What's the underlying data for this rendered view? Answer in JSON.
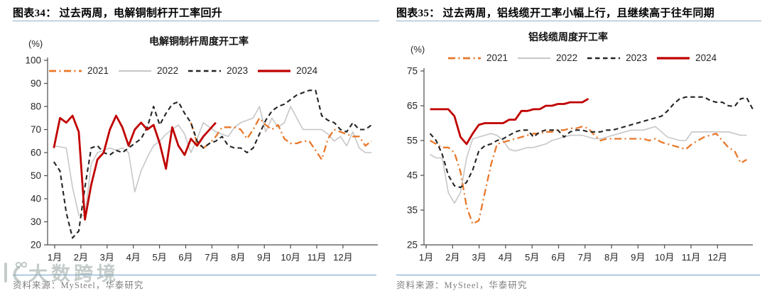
{
  "panels": [
    {
      "header": "图表34：  过去两周，电解铜制杆开工率回升",
      "chart_title": "电解铜制杆周度开工率",
      "unit_label": "(%)",
      "source": "资料来源：MySteel，华泰研究",
      "chart_data": {
        "type": "line",
        "ylim": [
          20,
          100
        ],
        "yticks": [
          20,
          30,
          40,
          50,
          60,
          70,
          80,
          90,
          100
        ],
        "x_labels": [
          "1月",
          "2月",
          "3月",
          "4月",
          "5月",
          "6月",
          "7月",
          "8月",
          "9月",
          "10月",
          "11月",
          "12月"
        ],
        "x_unit": "week",
        "weeks_total": 53,
        "grid": false,
        "legend_position": "top",
        "series": [
          {
            "name": "2021",
            "style": "dashdot",
            "color": "#E8782B",
            "start_week": 23,
            "values": [
              73,
              64,
              62,
              64,
              67,
              71,
              71,
              71,
              70,
              66,
              70,
              75,
              72,
              70,
              72,
              66,
              64,
              64,
              65,
              65,
              61,
              57,
              66,
              70,
              69,
              68,
              67,
              67,
              63,
              65
            ]
          },
          {
            "name": "2022",
            "style": "solid",
            "color": "#C7C7C7",
            "start_week": 1,
            "values": [
              63,
              62.5,
              62,
              45,
              33,
              32.5,
              55,
              60,
              61,
              62,
              61,
              62,
              60,
              43,
              52,
              58,
              63,
              65,
              68,
              70,
              72,
              68,
              60,
              66,
              73,
              71,
              69,
              68,
              67,
              71,
              73,
              74,
              75,
              80,
              69,
              75,
              71,
              73,
              80,
              75,
              70,
              70,
              70,
              70,
              68,
              65,
              67,
              63,
              69,
              62,
              60,
              60
            ]
          },
          {
            "name": "2023",
            "style": "dashed",
            "color": "#242424",
            "start_week": 1,
            "values": [
              56,
              52,
              34,
              23,
              26,
              45,
              62,
              63,
              60,
              59,
              61,
              60,
              62,
              64,
              66,
              71,
              80,
              72,
              77,
              81,
              82,
              77,
              73,
              65,
              62,
              64,
              65,
              67,
              63,
              62,
              62,
              60,
              62,
              68,
              74,
              78,
              80,
              81,
              83,
              85,
              86,
              87,
              87,
              76,
              74,
              73,
              70,
              69,
              73,
              70,
              70,
              72
            ]
          },
          {
            "name": "2024",
            "style": "solid",
            "color": "#C00000",
            "start_week": 1,
            "values": [
              62,
              75,
              73,
              76,
              69,
              31,
              46,
              57,
              60,
              70,
              76,
              71,
              63,
              70,
              73,
              70,
              72,
              64,
              53,
              71,
              63,
              59,
              66,
              63,
              67,
              70,
              73
            ]
          }
        ]
      }
    },
    {
      "header": "图表35：  过去两周，铝线缆开工率小幅上行，且继续高于往年同期",
      "chart_title": "铝线缆周度开工率",
      "unit_label": "(%)",
      "source": "资料来源：MySteel，华泰研究",
      "chart_data": {
        "type": "line",
        "ylim": [
          25,
          75
        ],
        "yticks": [
          25,
          35,
          45,
          55,
          65,
          75
        ],
        "x_labels": [
          "1月",
          "2月",
          "3月",
          "4月",
          "5月",
          "6月",
          "7月",
          "8月",
          "9月",
          "10月",
          "11月",
          "12月"
        ],
        "x_unit": "week",
        "weeks_total": 54,
        "grid": false,
        "legend_position": "top",
        "series": [
          {
            "name": "2021",
            "style": "dashdot",
            "color": "#E8782B",
            "start_week": 1,
            "values": [
              55,
              54,
              53,
              53,
              51.5,
              46,
              36,
              31,
              32,
              40,
              48,
              54,
              54.5,
              55,
              55.5,
              56,
              56.5,
              57,
              57,
              57.5,
              57.5,
              58,
              58,
              58.5,
              58.5,
              59,
              58.5,
              56.5,
              55,
              55.5,
              55.5,
              55.5,
              55.5,
              55.5,
              55.5,
              55.5,
              55,
              55.5,
              54.5,
              54,
              53.5,
              53,
              52.5,
              54,
              55,
              56,
              56.5,
              57,
              55,
              53,
              52,
              48.5,
              49.5
            ]
          },
          {
            "name": "2022",
            "style": "solid",
            "color": "#C7C7C7",
            "start_week": 1,
            "values": [
              51,
              50,
              50,
              40,
              37,
              40,
              50,
              55.5,
              56,
              56.5,
              57,
              56.5,
              55,
              52.5,
              52,
              52.5,
              53,
              53,
              53.5,
              54,
              55,
              55.5,
              56,
              56.5,
              56.5,
              56.5,
              56,
              55.5,
              55.5,
              56,
              56.5,
              57,
              57.5,
              58,
              58,
              58,
              58.5,
              59,
              57.5,
              56,
              55.5,
              55,
              55,
              57.5,
              57.5,
              57.5,
              57.5,
              57.5,
              57.5,
              57.5,
              57,
              56.5,
              56.5
            ]
          },
          {
            "name": "2023",
            "style": "dashed",
            "color": "#242424",
            "start_week": 1,
            "values": [
              57,
              55,
              51,
              45,
              42,
              41.5,
              43,
              46.5,
              52,
              53.5,
              54,
              55,
              55.5,
              56.5,
              57.5,
              58,
              58,
              56,
              57.5,
              58,
              58,
              58,
              56,
              57.5,
              58,
              58,
              57.5,
              57.5,
              57.5,
              58,
              58,
              58.5,
              59,
              59.5,
              60,
              60.5,
              61,
              61.5,
              62,
              63.5,
              65.5,
              67,
              67.5,
              67.5,
              67.5,
              67.5,
              66.5,
              66,
              66,
              65,
              64.8,
              67,
              67.3,
              64
            ]
          },
          {
            "name": "2024",
            "style": "solid",
            "color": "#C00000",
            "start_week": 1,
            "values": [
              64,
              64,
              64,
              64,
              62,
              56,
              54,
              57,
              59.5,
              60,
              60,
              60,
              60,
              61,
              61,
              63.5,
              63.5,
              64,
              64,
              65,
              65,
              65.5,
              65.5,
              66,
              66,
              66,
              67
            ]
          }
        ]
      }
    }
  ],
  "watermark": {
    "text": "大数跨境"
  },
  "colors": {
    "accent_red": "#C00000",
    "accent_orange": "#E8782B",
    "gray_line": "#C7C7C7",
    "black_line": "#242424",
    "header_rule": "#8fafce",
    "bottom_rule": "#6f9fd0",
    "axis_text": "#262626",
    "source_text": "#808080"
  }
}
